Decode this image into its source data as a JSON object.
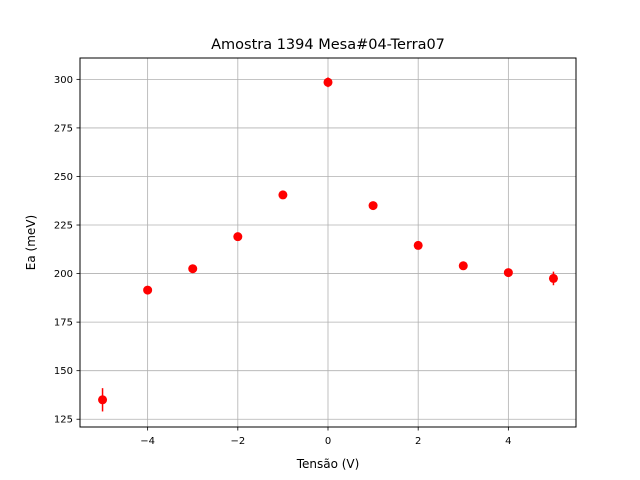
{
  "chart_data": {
    "type": "scatter",
    "title": "Amostra 1394 Mesa#04-Terra07",
    "xlabel": "Tensão (V)",
    "ylabel": "Ea (meV)",
    "xlim": [
      -5.5,
      5.5
    ],
    "ylim": [
      121,
      311
    ],
    "xticks": [
      -4,
      -2,
      0,
      2,
      4
    ],
    "xtick_labels": [
      "−4",
      "−2",
      "0",
      "2",
      "4"
    ],
    "yticks": [
      125,
      150,
      175,
      200,
      225,
      250,
      275,
      300
    ],
    "ytick_labels": [
      "125",
      "150",
      "175",
      "200",
      "225",
      "250",
      "275",
      "300"
    ],
    "grid": true,
    "legend": "none",
    "marker_color": "#ff0000",
    "points": [
      {
        "x": -5,
        "y": 135.0,
        "err": 6.0
      },
      {
        "x": -4,
        "y": 191.5,
        "err": 1.5
      },
      {
        "x": -3,
        "y": 202.5,
        "err": 1.5
      },
      {
        "x": -2,
        "y": 219.0,
        "err": 1.5
      },
      {
        "x": -1,
        "y": 240.5,
        "err": 1.5
      },
      {
        "x": 0,
        "y": 298.5,
        "err": 2.5
      },
      {
        "x": 1,
        "y": 235.0,
        "err": 1.5
      },
      {
        "x": 2,
        "y": 214.5,
        "err": 1.5
      },
      {
        "x": 3,
        "y": 204.0,
        "err": 1.5
      },
      {
        "x": 4,
        "y": 200.5,
        "err": 2.0
      },
      {
        "x": 5,
        "y": 197.5,
        "err": 3.5
      }
    ]
  }
}
